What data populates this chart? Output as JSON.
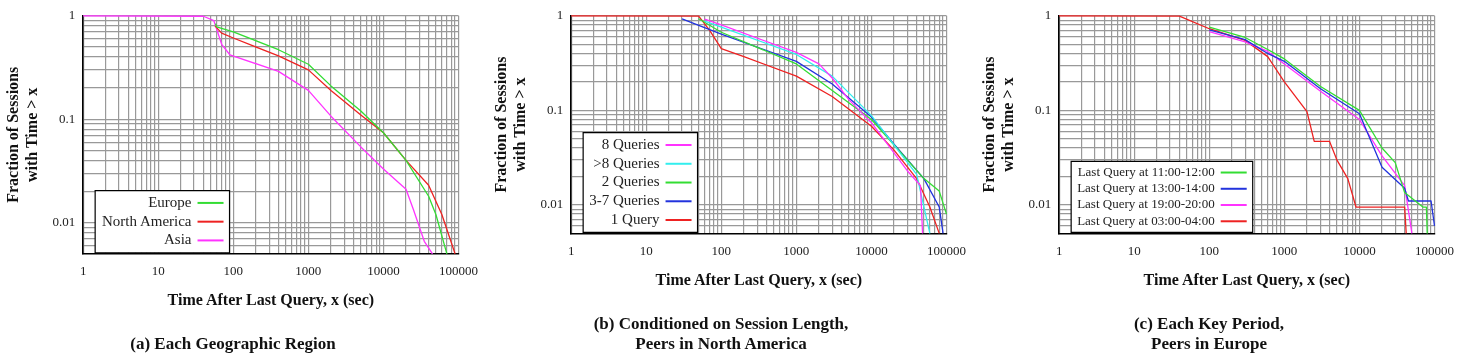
{
  "chart_data": [
    {
      "type": "line",
      "title": "(a) Each Geographic Region",
      "xlabel": "Time After Last Query, x (sec)",
      "ylabel": "Fraction of Sessions\nwith Time > x",
      "log": "xy",
      "grid": true,
      "legend": "bottom left",
      "xlim": [
        1,
        100000
      ],
      "ylim": [
        0.005,
        1
      ],
      "xticks": [
        1,
        {
          "value": 2,
          "label": null
        },
        {
          "value": 3,
          "label": null
        },
        {
          "value": 4,
          "label": null
        },
        {
          "value": 5,
          "label": null
        },
        {
          "value": 6,
          "label": null
        },
        {
          "value": 7,
          "label": null
        },
        {
          "value": 8,
          "label": null
        },
        {
          "value": 9,
          "label": null
        },
        10,
        {
          "value": 20,
          "label": null
        },
        {
          "value": 30,
          "label": null
        },
        {
          "value": 40,
          "label": null
        },
        {
          "value": 50,
          "label": null
        },
        {
          "value": 60,
          "label": null
        },
        {
          "value": 70,
          "label": null
        },
        {
          "value": 80,
          "label": null
        },
        {
          "value": 90,
          "label": null
        },
        100,
        {
          "value": 200,
          "label": null
        },
        {
          "value": 300,
          "label": null
        },
        {
          "value": 400,
          "label": null
        },
        {
          "value": 500,
          "label": null
        },
        {
          "value": 600,
          "label": null
        },
        {
          "value": 700,
          "label": null
        },
        {
          "value": 800,
          "label": null
        },
        {
          "value": 900,
          "label": null
        },
        1000,
        {
          "value": 2000,
          "label": null
        },
        {
          "value": 3000,
          "label": null
        },
        {
          "value": 4000,
          "label": null
        },
        {
          "value": 5000,
          "label": null
        },
        {
          "value": 6000,
          "label": null
        },
        {
          "value": 7000,
          "label": null
        },
        {
          "value": 8000,
          "label": null
        },
        {
          "value": 9000,
          "label": null
        },
        10000,
        {
          "value": 20000,
          "label": null
        },
        {
          "value": 30000,
          "label": null
        },
        {
          "value": 40000,
          "label": null
        },
        {
          "value": 50000,
          "label": null
        },
        {
          "value": 60000,
          "label": null
        },
        {
          "value": 70000,
          "label": null
        },
        {
          "value": 80000,
          "label": null
        },
        {
          "value": 90000,
          "label": null
        },
        100000
      ],
      "yticks": [
        {
          "value": 0.006,
          "label": null
        },
        {
          "value": 0.007,
          "label": null
        },
        {
          "value": 0.008,
          "label": null
        },
        {
          "value": 0.009,
          "label": null
        },
        0.01,
        {
          "value": 0.02,
          "label": null
        },
        {
          "value": 0.03,
          "label": null
        },
        {
          "value": 0.04,
          "label": null
        },
        {
          "value": 0.05,
          "label": null
        },
        {
          "value": 0.06,
          "label": null
        },
        {
          "value": 0.07,
          "label": null
        },
        {
          "value": 0.08,
          "label": null
        },
        {
          "value": 0.09,
          "label": null
        },
        0.1,
        {
          "value": 0.2,
          "label": null
        },
        {
          "value": 0.3,
          "label": null
        },
        {
          "value": 0.4,
          "label": null
        },
        {
          "value": 0.5,
          "label": null
        },
        {
          "value": 0.6,
          "label": null
        },
        {
          "value": 0.7,
          "label": null
        },
        {
          "value": 0.8,
          "label": null
        },
        {
          "value": 0.9,
          "label": null
        },
        1
      ],
      "series": [
        {
          "name": "Europe",
          "color": "#33dd33",
          "x": [
            58,
            60,
            100,
            400,
            1000,
            2000,
            5000,
            10000,
            20000,
            40000,
            50000,
            70000
          ],
          "values": [
            0.84,
            0.78,
            0.7,
            0.47,
            0.34,
            0.21,
            0.12,
            0.074,
            0.04,
            0.018,
            0.012,
            0.005
          ]
        },
        {
          "name": "North America",
          "color": "#ee2222",
          "x": [
            57,
            70,
            100,
            400,
            1000,
            2000,
            5000,
            10000,
            20000,
            40000,
            60000,
            90000
          ],
          "values": [
            0.8,
            0.68,
            0.61,
            0.41,
            0.3,
            0.19,
            0.11,
            0.074,
            0.04,
            0.023,
            0.012,
            0.005
          ]
        },
        {
          "name": "Asia",
          "color": "#ff33ff",
          "x": [
            1,
            40,
            55,
            70,
            90,
            400,
            1000,
            2000,
            5000,
            10000,
            20000,
            25000,
            35000,
            45000
          ],
          "values": [
            1,
            0.99,
            0.9,
            0.53,
            0.42,
            0.29,
            0.19,
            0.107,
            0.054,
            0.033,
            0.021,
            0.0135,
            0.0066,
            0.005
          ]
        }
      ]
    },
    {
      "type": "line",
      "title": "(b) Conditioned on Session Length,\nPeers in North America",
      "xlabel": "Time After Last Query, x (sec)",
      "ylabel": "Fraction of Sessions\nwith Time > x",
      "log": "xy",
      "grid": true,
      "legend": "bottom left",
      "xlim": [
        1,
        100000
      ],
      "ylim": [
        0.005,
        1
      ],
      "xticks": [
        1,
        {
          "value": 2,
          "label": null
        },
        {
          "value": 3,
          "label": null
        },
        {
          "value": 4,
          "label": null
        },
        {
          "value": 5,
          "label": null
        },
        {
          "value": 6,
          "label": null
        },
        {
          "value": 7,
          "label": null
        },
        {
          "value": 8,
          "label": null
        },
        {
          "value": 9,
          "label": null
        },
        10,
        {
          "value": 20,
          "label": null
        },
        {
          "value": 30,
          "label": null
        },
        {
          "value": 40,
          "label": null
        },
        {
          "value": 50,
          "label": null
        },
        {
          "value": 60,
          "label": null
        },
        {
          "value": 70,
          "label": null
        },
        {
          "value": 80,
          "label": null
        },
        {
          "value": 90,
          "label": null
        },
        100,
        {
          "value": 200,
          "label": null
        },
        {
          "value": 300,
          "label": null
        },
        {
          "value": 400,
          "label": null
        },
        {
          "value": 500,
          "label": null
        },
        {
          "value": 600,
          "label": null
        },
        {
          "value": 700,
          "label": null
        },
        {
          "value": 800,
          "label": null
        },
        {
          "value": 900,
          "label": null
        },
        1000,
        {
          "value": 2000,
          "label": null
        },
        {
          "value": 3000,
          "label": null
        },
        {
          "value": 4000,
          "label": null
        },
        {
          "value": 5000,
          "label": null
        },
        {
          "value": 6000,
          "label": null
        },
        {
          "value": 7000,
          "label": null
        },
        {
          "value": 8000,
          "label": null
        },
        {
          "value": 9000,
          "label": null
        },
        10000,
        {
          "value": 20000,
          "label": null
        },
        {
          "value": 30000,
          "label": null
        },
        {
          "value": 40000,
          "label": null
        },
        {
          "value": 50000,
          "label": null
        },
        {
          "value": 60000,
          "label": null
        },
        {
          "value": 70000,
          "label": null
        },
        {
          "value": 80000,
          "label": null
        },
        {
          "value": 90000,
          "label": null
        },
        100000
      ],
      "yticks": [
        {
          "value": 0.006,
          "label": null
        },
        {
          "value": 0.007,
          "label": null
        },
        {
          "value": 0.008,
          "label": null
        },
        {
          "value": 0.009,
          "label": null
        },
        0.01,
        {
          "value": 0.02,
          "label": null
        },
        {
          "value": 0.03,
          "label": null
        },
        {
          "value": 0.04,
          "label": null
        },
        {
          "value": 0.05,
          "label": null
        },
        {
          "value": 0.06,
          "label": null
        },
        {
          "value": 0.07,
          "label": null
        },
        {
          "value": 0.08,
          "label": null
        },
        {
          "value": 0.09,
          "label": null
        },
        0.1,
        {
          "value": 0.2,
          "label": null
        },
        {
          "value": 0.3,
          "label": null
        },
        {
          "value": 0.4,
          "label": null
        },
        {
          "value": 0.5,
          "label": null
        },
        {
          "value": 0.6,
          "label": null
        },
        {
          "value": 0.7,
          "label": null
        },
        {
          "value": 0.8,
          "label": null
        },
        {
          "value": 0.9,
          "label": null
        },
        1
      ],
      "series": [
        {
          "name": "8 Queries",
          "color": "#ff33ff",
          "x": [
            60,
            100,
            1000,
            2000,
            3000,
            5000,
            10000,
            30000,
            45000,
            48000
          ],
          "values": [
            0.92,
            0.8,
            0.41,
            0.31,
            0.22,
            0.13,
            0.074,
            0.023,
            0.016,
            0.005
          ]
        },
        {
          "name": ">8 Queries",
          "color": "#33eeee",
          "x": [
            60,
            100,
            1000,
            3000,
            10000,
            40000,
            60000
          ],
          "values": [
            0.88,
            0.76,
            0.39,
            0.23,
            0.088,
            0.021,
            0.005
          ]
        },
        {
          "name": "2 Queries",
          "color": "#33dd33",
          "x": [
            50,
            100,
            1000,
            10000,
            50000,
            80000,
            100000
          ],
          "values": [
            0.93,
            0.67,
            0.31,
            0.08,
            0.019,
            0.014,
            0.008
          ]
        },
        {
          "name": "3-7 Queries",
          "color": "#2233dd",
          "x": [
            30,
            100,
            1000,
            3000,
            10000,
            20000,
            50000,
            80000,
            90000
          ],
          "values": [
            0.93,
            0.64,
            0.33,
            0.19,
            0.085,
            0.044,
            0.019,
            0.0095,
            0.005
          ]
        },
        {
          "name": "1 Query",
          "color": "#ee2222",
          "x": [
            1,
            50,
            70,
            100,
            200,
            1000,
            3000,
            10000,
            20000,
            40000,
            60000,
            80000
          ],
          "values": [
            1,
            0.99,
            0.7,
            0.45,
            0.37,
            0.23,
            0.14,
            0.068,
            0.038,
            0.019,
            0.0095,
            0.005
          ]
        }
      ]
    },
    {
      "type": "line",
      "title": "(c) Each Key Period,\nPeers in Europe",
      "xlabel": "Time After Last Query, x (sec)",
      "ylabel": "Fraction of Sessions\nwith Time > x",
      "log": "xy",
      "grid": true,
      "legend": "bottom left",
      "xlim": [
        1,
        100000
      ],
      "ylim": [
        0.005,
        1
      ],
      "xticks": [
        1,
        {
          "value": 2,
          "label": null
        },
        {
          "value": 3,
          "label": null
        },
        {
          "value": 4,
          "label": null
        },
        {
          "value": 5,
          "label": null
        },
        {
          "value": 6,
          "label": null
        },
        {
          "value": 7,
          "label": null
        },
        {
          "value": 8,
          "label": null
        },
        {
          "value": 9,
          "label": null
        },
        10,
        {
          "value": 20,
          "label": null
        },
        {
          "value": 30,
          "label": null
        },
        {
          "value": 40,
          "label": null
        },
        {
          "value": 50,
          "label": null
        },
        {
          "value": 60,
          "label": null
        },
        {
          "value": 70,
          "label": null
        },
        {
          "value": 80,
          "label": null
        },
        {
          "value": 90,
          "label": null
        },
        100,
        {
          "value": 200,
          "label": null
        },
        {
          "value": 300,
          "label": null
        },
        {
          "value": 400,
          "label": null
        },
        {
          "value": 500,
          "label": null
        },
        {
          "value": 600,
          "label": null
        },
        {
          "value": 700,
          "label": null
        },
        {
          "value": 800,
          "label": null
        },
        {
          "value": 900,
          "label": null
        },
        1000,
        {
          "value": 2000,
          "label": null
        },
        {
          "value": 3000,
          "label": null
        },
        {
          "value": 4000,
          "label": null
        },
        {
          "value": 5000,
          "label": null
        },
        {
          "value": 6000,
          "label": null
        },
        {
          "value": 7000,
          "label": null
        },
        {
          "value": 8000,
          "label": null
        },
        {
          "value": 9000,
          "label": null
        },
        10000,
        {
          "value": 20000,
          "label": null
        },
        {
          "value": 30000,
          "label": null
        },
        {
          "value": 40000,
          "label": null
        },
        {
          "value": 50000,
          "label": null
        },
        {
          "value": 60000,
          "label": null
        },
        {
          "value": 70000,
          "label": null
        },
        {
          "value": 80000,
          "label": null
        },
        {
          "value": 90000,
          "label": null
        },
        100000
      ],
      "yticks": [
        {
          "value": 0.006,
          "label": null
        },
        {
          "value": 0.007,
          "label": null
        },
        {
          "value": 0.008,
          "label": null
        },
        {
          "value": 0.009,
          "label": null
        },
        0.01,
        {
          "value": 0.02,
          "label": null
        },
        {
          "value": 0.03,
          "label": null
        },
        {
          "value": 0.04,
          "label": null
        },
        {
          "value": 0.05,
          "label": null
        },
        {
          "value": 0.06,
          "label": null
        },
        {
          "value": 0.07,
          "label": null
        },
        {
          "value": 0.08,
          "label": null
        },
        {
          "value": 0.09,
          "label": null
        },
        0.1,
        {
          "value": 0.2,
          "label": null
        },
        {
          "value": 0.3,
          "label": null
        },
        {
          "value": 0.4,
          "label": null
        },
        {
          "value": 0.5,
          "label": null
        },
        {
          "value": 0.6,
          "label": null
        },
        {
          "value": 0.7,
          "label": null
        },
        {
          "value": 0.8,
          "label": null
        },
        {
          "value": 0.9,
          "label": null
        },
        1
      ],
      "series": [
        {
          "name": "Last Query at 11:00-12:00",
          "color": "#33dd33",
          "x": [
            100,
            300,
            600,
            1000,
            3000,
            10000,
            20000,
            30000,
            40000,
            70000,
            78000,
            80000
          ],
          "values": [
            0.76,
            0.59,
            0.44,
            0.35,
            0.18,
            0.1,
            0.04,
            0.028,
            0.0135,
            0.0095,
            0.0095,
            0.005
          ]
        },
        {
          "name": "Last Query at 13:00-14:00",
          "color": "#2233dd",
          "x": [
            100,
            300,
            600,
            1000,
            3000,
            10000,
            20000,
            40000,
            45000,
            90000,
            100000
          ],
          "values": [
            0.71,
            0.56,
            0.4,
            0.33,
            0.17,
            0.092,
            0.025,
            0.015,
            0.011,
            0.011,
            0.006
          ]
        },
        {
          "name": "Last Query at 19:00-20:00",
          "color": "#ff33ff",
          "x": [
            100,
            300,
            600,
            1000,
            3000,
            10000,
            20000,
            40000,
            50000
          ],
          "values": [
            0.68,
            0.53,
            0.42,
            0.31,
            0.16,
            0.08,
            0.033,
            0.016,
            0.005
          ]
        },
        {
          "name": "Last Query at 03:00-04:00",
          "color": "#ee2222",
          "x": [
            1,
            40,
            100,
            300,
            600,
            1000,
            2000,
            2500,
            4000,
            5000,
            7000,
            9000,
            40000,
            42000
          ],
          "values": [
            1,
            0.99,
            0.73,
            0.55,
            0.37,
            0.2,
            0.097,
            0.047,
            0.047,
            0.03,
            0.019,
            0.0095,
            0.0095,
            0.005
          ]
        }
      ]
    }
  ]
}
